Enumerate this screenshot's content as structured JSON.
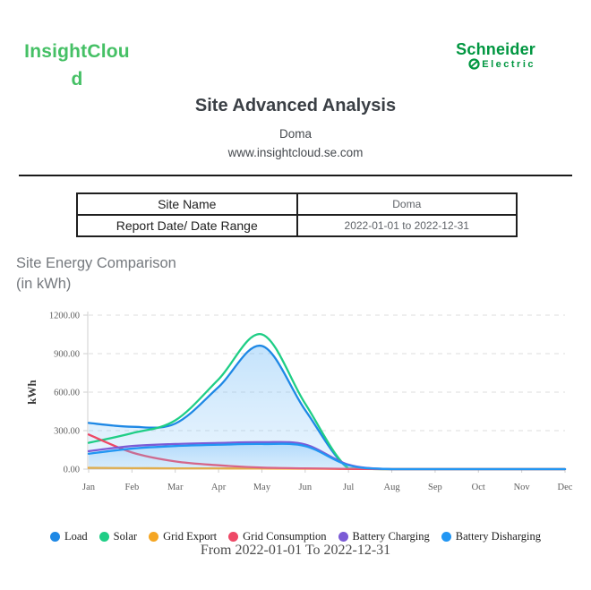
{
  "header": {
    "app_name_line1": "InsightClou",
    "app_name_line2": "d",
    "brand_name": "Schneider",
    "brand_sub": "Electric",
    "title": "Site Advanced Analysis",
    "subtitle": "Doma",
    "url": "www.insightcloud.se.com"
  },
  "info_table": {
    "rows": [
      {
        "label": "Site Name",
        "value": "Doma"
      },
      {
        "label": "Report Date/ Date Range",
        "value": "2022-01-01 to 2022-12-31"
      }
    ]
  },
  "section": {
    "title_line1": "Site Energy Comparison",
    "title_line2": "(in kWh)"
  },
  "chart_data": {
    "type": "area",
    "title": "Site Energy Comparison (in kWh)",
    "xlabel": "",
    "ylabel": "kWh",
    "ylim": [
      0,
      1200
    ],
    "ytick_step": 300,
    "ytick_labels": [
      "0.00",
      "300.00",
      "600.00",
      "900.00",
      "1200.00"
    ],
    "grid": "dashed-horizontal",
    "legend_position": "bottom",
    "categories": [
      "Jan",
      "Feb",
      "Mar",
      "Apr",
      "May",
      "Jun",
      "Jul",
      "Aug",
      "Sep",
      "Oct",
      "Nov",
      "Dec"
    ],
    "series": [
      {
        "name": "Load",
        "color": "#1E88E5",
        "fill": true,
        "values": [
          360,
          330,
          355,
          640,
          960,
          460,
          5,
          0,
          0,
          0,
          0,
          0
        ]
      },
      {
        "name": "Solar",
        "color": "#1FCE86",
        "fill": false,
        "values": [
          205,
          280,
          380,
          700,
          1050,
          510,
          5,
          0,
          0,
          0,
          0,
          0
        ]
      },
      {
        "name": "Grid Export",
        "color": "#F5A623",
        "fill": false,
        "values": [
          10,
          8,
          6,
          6,
          5,
          4,
          2,
          0,
          0,
          0,
          0,
          0
        ]
      },
      {
        "name": "Grid Consumption",
        "color": "#EE4866",
        "fill": false,
        "values": [
          270,
          130,
          60,
          30,
          12,
          6,
          2,
          0,
          0,
          0,
          0,
          0
        ]
      },
      {
        "name": "Battery Charging",
        "color": "#7B5BD6",
        "fill": false,
        "values": [
          140,
          180,
          196,
          204,
          210,
          192,
          35,
          0,
          0,
          0,
          0,
          0
        ]
      },
      {
        "name": "Battery Disharging",
        "color": "#2196F3",
        "fill": true,
        "values": [
          120,
          160,
          180,
          190,
          196,
          180,
          30,
          0,
          0,
          0,
          0,
          0
        ]
      }
    ]
  },
  "footer": {
    "range_text": "From 2022-01-01 To 2022-12-31"
  }
}
